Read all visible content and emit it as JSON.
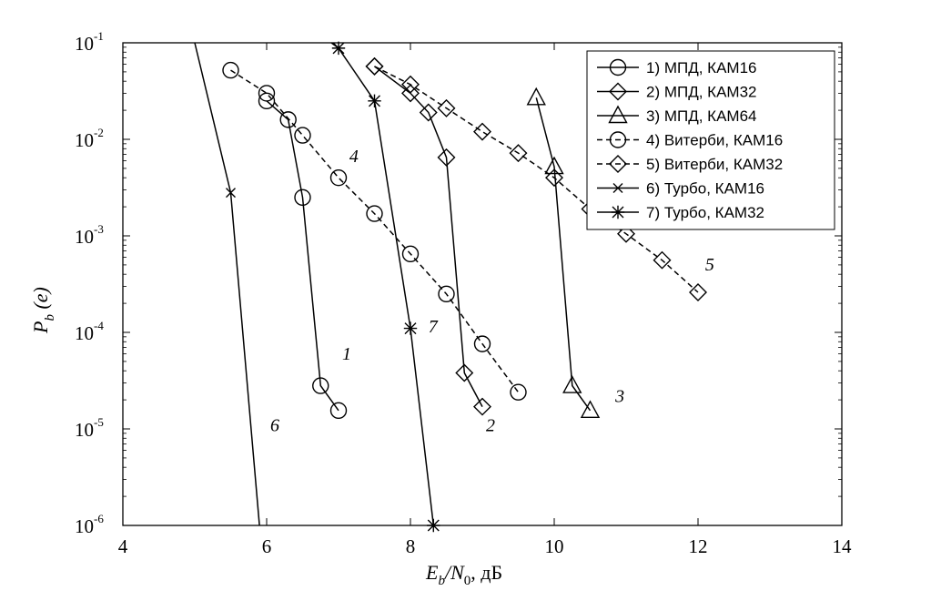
{
  "chart_data": {
    "type": "line",
    "x_axis": {
      "min": 4,
      "max": 14,
      "ticks": [
        "4",
        "6",
        "8",
        "10",
        "12",
        "14"
      ],
      "label_parts": [
        "E",
        "b",
        "/N",
        "0",
        ", дБ"
      ]
    },
    "y_axis": {
      "scale": "log",
      "min": 1e-06,
      "max": 0.1,
      "ticks": [
        {
          "base": "10",
          "exp": "-1"
        },
        {
          "base": "10",
          "exp": "-2"
        },
        {
          "base": "10",
          "exp": "-3"
        },
        {
          "base": "10",
          "exp": "-4"
        },
        {
          "base": "10",
          "exp": "-5"
        },
        {
          "base": "10",
          "exp": "-6"
        }
      ],
      "label_parts": [
        "P",
        "b",
        " (e)"
      ]
    },
    "grid": false,
    "legend_position": "top-right",
    "series": [
      {
        "name": "1) МПД, КАМ16",
        "marker": "circle",
        "dash": "solid",
        "points": [
          [
            6.0,
            0.025
          ],
          [
            6.3,
            0.016
          ],
          [
            6.5,
            0.0025
          ],
          [
            6.75,
            2.8e-05
          ],
          [
            7.0,
            1.55e-05
          ]
        ]
      },
      {
        "name": "2) МПД, КАМ32",
        "marker": "diamond",
        "dash": "solid",
        "points": [
          [
            7.5,
            0.057
          ],
          [
            8.0,
            0.03
          ],
          [
            8.25,
            0.019
          ],
          [
            8.5,
            0.0065
          ],
          [
            8.75,
            3.8e-05
          ],
          [
            9.0,
            1.7e-05
          ]
        ]
      },
      {
        "name": "3) МПД, КАМ64",
        "marker": "triangle",
        "dash": "solid",
        "points": [
          [
            9.75,
            0.027
          ],
          [
            10.0,
            0.0052
          ],
          [
            10.25,
            2.8e-05
          ],
          [
            10.5,
            1.55e-05
          ]
        ]
      },
      {
        "name": "4) Витерби, КАМ16",
        "marker": "circle",
        "dash": "dashed",
        "points": [
          [
            5.5,
            0.052
          ],
          [
            6.0,
            0.03
          ],
          [
            6.5,
            0.011
          ],
          [
            7.0,
            0.004
          ],
          [
            7.5,
            0.0017
          ],
          [
            8.0,
            0.00065
          ],
          [
            8.5,
            0.00025
          ],
          [
            9.0,
            7.6e-05
          ],
          [
            9.5,
            2.4e-05
          ]
        ]
      },
      {
        "name": "5) Витерби, КАМ32",
        "marker": "diamond",
        "dash": "dashed",
        "points": [
          [
            7.5,
            0.057
          ],
          [
            8.0,
            0.037
          ],
          [
            8.5,
            0.021
          ],
          [
            9.0,
            0.012
          ],
          [
            9.5,
            0.0072
          ],
          [
            10.0,
            0.004
          ],
          [
            10.5,
            0.0019
          ],
          [
            11.0,
            0.00105
          ],
          [
            11.5,
            0.00056
          ],
          [
            12.0,
            0.00026
          ]
        ]
      },
      {
        "name": "6) Турбо, КАМ16",
        "marker": "x",
        "dash": "solid",
        "points": [
          [
            5.0,
            0.1
          ],
          [
            5.5,
            0.0028
          ],
          [
            5.9,
            1e-06
          ]
        ]
      },
      {
        "name": "7) Турбо, КАМ32",
        "marker": "star",
        "dash": "solid",
        "points": [
          [
            6.9,
            0.1
          ],
          [
            7.0,
            0.088
          ],
          [
            7.5,
            0.025
          ],
          [
            8.0,
            0.00011
          ],
          [
            8.32,
            1e-06
          ]
        ]
      }
    ],
    "annotations": [
      {
        "text": "1",
        "x": 7.05,
        "y": 5.2e-05
      },
      {
        "text": "2",
        "x": 9.05,
        "y": 9.5e-06
      },
      {
        "text": "3",
        "x": 10.85,
        "y": 1.9e-05
      },
      {
        "text": "4",
        "x": 7.15,
        "y": 0.0058
      },
      {
        "text": "5",
        "x": 12.1,
        "y": 0.00044
      },
      {
        "text": "6",
        "x": 6.05,
        "y": 9.5e-06
      },
      {
        "text": "7",
        "x": 8.25,
        "y": 0.0001
      }
    ]
  }
}
